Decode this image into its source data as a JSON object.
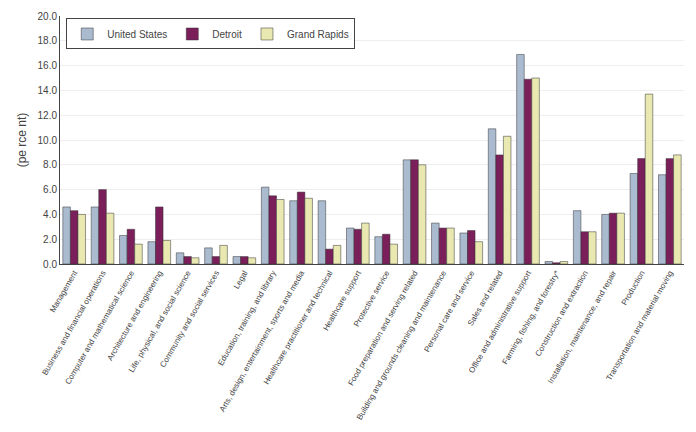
{
  "chart_data": {
    "type": "bar",
    "categories": [
      "Management",
      "Business and financial operations",
      "Computer and mathematical science",
      "Architecture and engineering",
      "Life, physical, and social science",
      "Community and social services",
      "Legal",
      "Education, training, and library",
      "Arts, design, entertainment, sports and media",
      "Healthcare practitioner and technical",
      "Healthcare support",
      "Protective service",
      "Food preparation and serving related",
      "Building and grounds cleaning and maintenance",
      "Personal care and service",
      "Sales and related",
      "Office and administrative support",
      "Farming, fishing, and forestry*",
      "Construction and extraction",
      "Installation, maintenance, and repair",
      "Production",
      "Transportation and material moving"
    ],
    "series": [
      {
        "name": "United States",
        "color": "#aabbd0",
        "values": [
          4.6,
          4.6,
          2.3,
          1.8,
          0.9,
          1.3,
          0.6,
          6.2,
          5.1,
          5.1,
          2.9,
          2.2,
          8.4,
          3.3,
          2.5,
          10.9,
          16.9,
          0.2,
          4.3,
          4.0,
          7.3,
          7.2
        ]
      },
      {
        "name": "Detroit",
        "color": "#7b1f5a",
        "values": [
          4.3,
          6.0,
          2.8,
          4.6,
          0.6,
          0.6,
          0.6,
          5.5,
          5.8,
          1.2,
          2.8,
          2.4,
          8.4,
          2.9,
          2.7,
          8.8,
          14.9,
          0.1,
          2.6,
          4.1,
          8.5,
          8.5
        ]
      },
      {
        "name": "Grand Rapids",
        "color": "#e8e8b0",
        "values": [
          4.0,
          4.1,
          1.6,
          1.9,
          0.5,
          1.5,
          0.5,
          5.2,
          5.3,
          1.5,
          3.3,
          1.6,
          8.0,
          2.9,
          1.8,
          10.3,
          15.0,
          0.2,
          2.6,
          4.1,
          13.7,
          8.8
        ]
      }
    ],
    "ylabel": "(pe rce nt)",
    "ylim": [
      0,
      20
    ],
    "yticks": [
      {
        "value": 0,
        "label": "0.0"
      },
      {
        "value": 2,
        "label": "2.0"
      },
      {
        "value": 4,
        "label": "4.0"
      },
      {
        "value": 6,
        "label": "6.0"
      },
      {
        "value": 8,
        "label": "8.0"
      },
      {
        "value": 10,
        "label": "10.0"
      },
      {
        "value": 12,
        "label": "12.0"
      },
      {
        "value": 14,
        "label": "14.0"
      },
      {
        "value": 16,
        "label": "16.0"
      },
      {
        "value": 18,
        "label": "18.0"
      },
      {
        "value": 20,
        "label": "20.0"
      }
    ],
    "grid": true,
    "legend": "upper left"
  }
}
